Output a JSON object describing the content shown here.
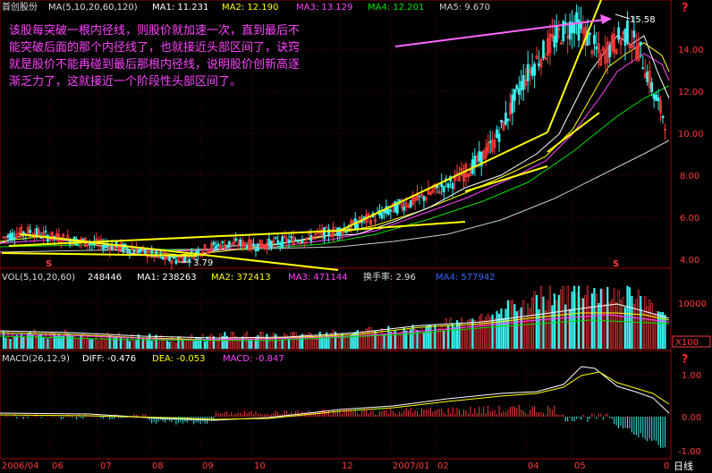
{
  "stock_name": "首创股份",
  "colors": {
    "ma1": "#ffffff",
    "ma2": "#ffff00",
    "ma3": "#ff44ff",
    "ma4": "#00e000",
    "ma5": "#cccccc",
    "up": "#ff3b3b",
    "down": "#3cf0f0",
    "frame": "#a00000",
    "trend": "#ffff00",
    "arrow": "#ff66ff",
    "note": "#ff44ff"
  },
  "price_panel": {
    "params": "MA(5,10,20,60,120)",
    "ma1_label": "MA1: 11.231",
    "ma2_label": "MA2: 12.190",
    "ma3_label": "MA3: 13.129",
    "ma4_label": "MA4: 12.201",
    "ma5_label": "MA5: 9.670",
    "peak_label": "15.58",
    "low_label": "3.79",
    "marker_s": "S"
  },
  "annotation": {
    "line1": "该股每突破一根内径线，则股价就加速一次，直到最后不",
    "line2": "能突破后面的那个内径线了，也就接近头部区间了，诀窍",
    "line3": "就是股价不能再碰到最后那根内径线，说明股价创新高逐",
    "line4": "渐乏力了，这就接近一个阶段性头部区间了。"
  },
  "volume_panel": {
    "params": "VOL(5,10,20,60)",
    "value": "248446",
    "ma1_label": "MA1: 238263",
    "ma2_label": "MA2: 372413",
    "ma3_label": "MA3: 471144",
    "turnover_label": "换手率: 2.96",
    "ma4_label": "MA4: 577942",
    "unit": "X100"
  },
  "macd_panel": {
    "params": "MACD(26,12,9)",
    "diff_label": "DIFF: -0.476",
    "dea_label": "DEA: -0.053",
    "macd_label": "MACD: -0.847"
  },
  "x_axis": {
    "labels": [
      "2006/04",
      "06",
      "07",
      "08",
      "09",
      "10",
      "12",
      "2007/01",
      "02",
      "04",
      "05",
      "0"
    ],
    "period": "日线"
  },
  "question_mark": "?",
  "chart_data": {
    "type": "line",
    "x_range": [
      "2006-04",
      "2007-05"
    ],
    "price": {
      "y_ticks": [
        "14.00",
        "12.00",
        "10.00",
        "8.00",
        "6.00",
        "4.00"
      ],
      "ylim": [
        3.5,
        16.0
      ],
      "close": [
        5.0,
        5.2,
        5.3,
        5.1,
        5.0,
        4.9,
        4.8,
        4.7,
        4.6,
        4.5,
        4.4,
        4.2,
        4.0,
        3.9,
        4.1,
        4.4,
        4.6,
        4.7,
        4.7,
        4.6,
        4.7,
        4.8,
        4.9,
        5.0,
        5.2,
        5.3,
        5.5,
        5.8,
        6.0,
        6.3,
        6.6,
        6.8,
        7.1,
        7.5,
        7.8,
        8.3,
        8.9,
        9.7,
        11.0,
        12.5,
        13.5,
        14.3,
        15.0,
        15.5,
        14.8,
        13.8,
        14.5,
        15.0,
        14.0,
        12.0,
        10.5
      ]
    },
    "volume": {
      "y_ticks": [
        "10000"
      ],
      "unit": "X100"
    },
    "macd": {
      "y_ticks": [
        "1.00",
        "0.00",
        "-1.00"
      ]
    },
    "trend_lines": 6
  }
}
